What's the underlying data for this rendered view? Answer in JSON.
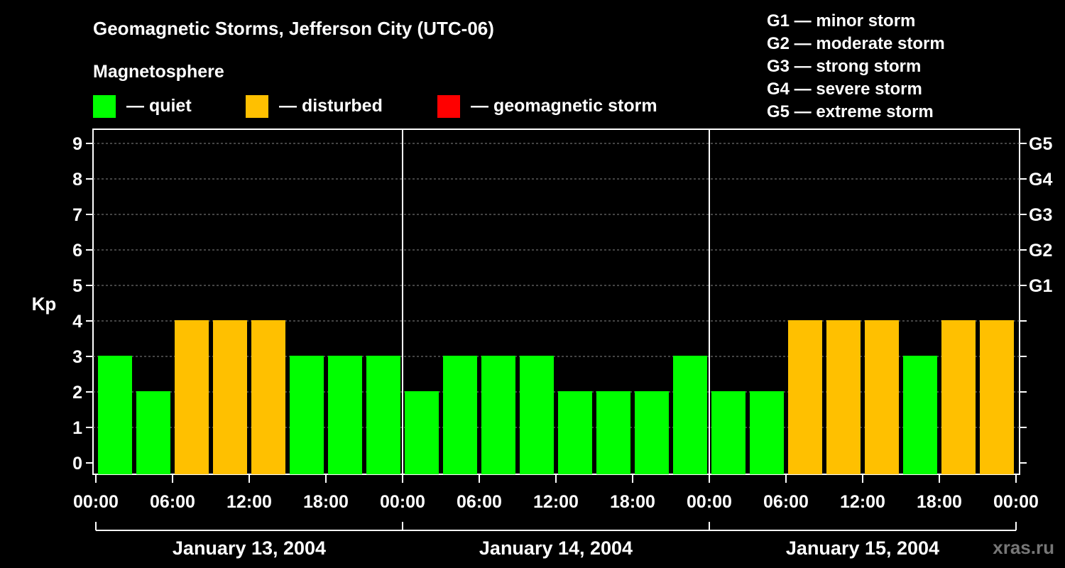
{
  "chart_data": {
    "type": "bar",
    "title": "Geomagnetic Storms, Jefferson City (UTC-06)",
    "ylabel": "Kp",
    "ylim": [
      0,
      9
    ],
    "yticks": [
      "0",
      "1",
      "2",
      "3",
      "4",
      "5",
      "6",
      "7",
      "8",
      "9"
    ],
    "right_axis_ticks": [
      {
        "kp": 5,
        "label": "G1"
      },
      {
        "kp": 6,
        "label": "G2"
      },
      {
        "kp": 7,
        "label": "G3"
      },
      {
        "kp": 8,
        "label": "G4"
      },
      {
        "kp": 9,
        "label": "G5"
      }
    ],
    "x_tick_labels": [
      "00:00",
      "06:00",
      "12:00",
      "18:00",
      "00:00",
      "06:00",
      "12:00",
      "18:00",
      "00:00",
      "06:00",
      "12:00",
      "18:00",
      "00:00"
    ],
    "days": [
      "January 13, 2004",
      "January 14, 2004",
      "January 15, 2004"
    ],
    "interval_hours": 3,
    "values": [
      3,
      2,
      4,
      4,
      4,
      3,
      3,
      3,
      2,
      3,
      3,
      3,
      2,
      2,
      2,
      3,
      2,
      2,
      4,
      4,
      4,
      3,
      4,
      4
    ],
    "grid": true,
    "legend": {
      "title": "Magnetosphere",
      "placement": "top-left",
      "items": [
        {
          "label": "— quiet",
          "color": "#00ff00"
        },
        {
          "label": "— disturbed",
          "color": "#ffc000"
        },
        {
          "label": "— geomagnetic storm",
          "color": "#ff0000"
        }
      ]
    },
    "scale_legend": {
      "placement": "top-right",
      "items": [
        "G1 — minor storm",
        "G2 — moderate storm",
        "G3 — strong storm",
        "G4 — severe storm",
        "G5 — extreme storm"
      ]
    },
    "watermark": "xras.ru"
  }
}
